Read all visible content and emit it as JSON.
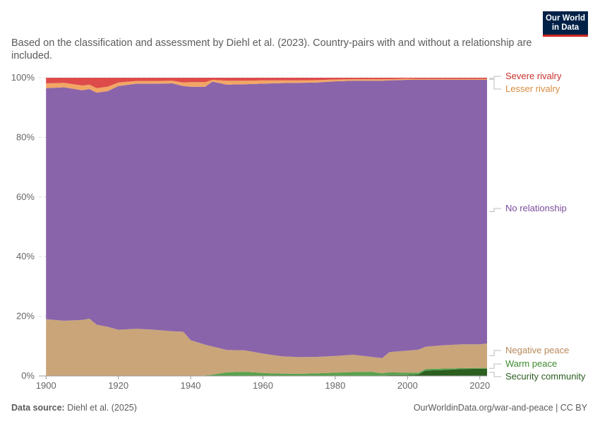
{
  "header": {
    "subtitle": "Based on the classification and assessment by Diehl et al. (2023). Country-pairs with and without a relationship are included.",
    "logo_line1": "Our World",
    "logo_line2": "in Data"
  },
  "footer": {
    "source_label": "Data source:",
    "source_value": "Diehl et al. (2025)",
    "url": "OurWorldinData.org/war-and-peace | CC BY"
  },
  "chart_data": {
    "type": "area",
    "stacked": true,
    "normalized": true,
    "x": [
      1900,
      1905,
      1910,
      1912,
      1914,
      1917,
      1920,
      1925,
      1930,
      1935,
      1938,
      1940,
      1944,
      1946,
      1950,
      1955,
      1960,
      1965,
      1970,
      1975,
      1980,
      1985,
      1990,
      1993,
      1995,
      2000,
      2003,
      2005,
      2010,
      2015,
      2020,
      2022
    ],
    "series": [
      {
        "name": "Security community",
        "color": "#2b5e1f",
        "values": [
          0,
          0,
          0,
          0,
          0,
          0,
          0,
          0,
          0,
          0,
          0,
          0,
          0,
          0,
          0,
          0,
          0,
          0,
          0,
          0,
          0,
          0,
          0,
          0,
          0.3,
          0.3,
          0.5,
          1.8,
          2.0,
          2.3,
          2.4,
          2.4
        ]
      },
      {
        "name": "Warm peace",
        "color": "#5aa14f",
        "values": [
          0,
          0,
          0,
          0,
          0,
          0,
          0,
          0,
          0,
          0,
          0,
          0,
          0.2,
          0.4,
          1.2,
          1.4,
          1.0,
          0.8,
          0.7,
          0.9,
          1.1,
          1.3,
          1.4,
          0.9,
          0.9,
          0.8,
          0.6,
          0.5,
          0.5,
          0.3,
          0.3,
          0.3
        ]
      },
      {
        "name": "Negative peace",
        "color": "#caa57a",
        "values": [
          19.0,
          18.5,
          18.8,
          19.2,
          17.2,
          16.5,
          15.5,
          15.8,
          15.5,
          15.0,
          14.8,
          12.0,
          10.3,
          9.5,
          7.5,
          7.2,
          6.5,
          5.8,
          5.6,
          5.5,
          5.6,
          5.8,
          5.0,
          5.1,
          6.8,
          7.4,
          7.7,
          7.5,
          7.8,
          8.0,
          7.9,
          8.2
        ]
      },
      {
        "name": "No relationship",
        "color": "#8a64aa",
        "values": [
          77.5,
          78.3,
          77.0,
          77.0,
          77.8,
          79.0,
          81.7,
          82.2,
          82.5,
          83.1,
          82.4,
          85.0,
          86.5,
          88.8,
          89.0,
          89.2,
          90.5,
          91.6,
          92.0,
          92.0,
          92.1,
          91.9,
          92.6,
          93.0,
          91.1,
          90.8,
          90.5,
          89.5,
          89.0,
          88.7,
          88.7,
          88.4
        ]
      },
      {
        "name": "Lesser rivalry",
        "color": "#f2a665",
        "values": [
          1.6,
          1.5,
          1.6,
          1.5,
          1.5,
          1.5,
          1.2,
          0.9,
          0.9,
          0.9,
          1.2,
          1.5,
          1.5,
          0.6,
          1.3,
          1.2,
          1.1,
          0.9,
          0.8,
          0.8,
          0.6,
          0.5,
          0.5,
          0.5,
          0.4,
          0.4,
          0.3,
          0.3,
          0.3,
          0.3,
          0.3,
          0.3
        ]
      },
      {
        "name": "Severe rivalry",
        "color": "#de4b4b",
        "values": [
          1.9,
          1.7,
          2.6,
          2.3,
          3.5,
          3.0,
          1.6,
          1.1,
          1.1,
          1.0,
          1.6,
          1.5,
          1.5,
          0.7,
          1.0,
          1.0,
          0.9,
          0.9,
          0.9,
          0.8,
          0.6,
          0.5,
          0.5,
          0.5,
          0.5,
          0.3,
          0.4,
          0.4,
          0.4,
          0.4,
          0.4,
          0.4
        ]
      }
    ],
    "legend": [
      {
        "name": "Severe rivalry",
        "color": "#c9302c"
      },
      {
        "name": "Lesser rivalry",
        "color": "#d98a3e"
      },
      {
        "name": "No relationship",
        "color": "#7a4d9c"
      },
      {
        "name": "Negative peace",
        "color": "#b8895a"
      },
      {
        "name": "Warm peace",
        "color": "#3c8a2e"
      },
      {
        "name": "Security community",
        "color": "#2b5e1f"
      }
    ],
    "legend_placement": "right",
    "xlim": [
      1898,
      2022
    ],
    "ylim": [
      0,
      100
    ],
    "x_ticks": [
      1900,
      1920,
      1940,
      1960,
      1980,
      2000,
      2020
    ],
    "y_ticks": [
      0,
      20,
      40,
      60,
      80,
      100
    ],
    "y_tick_labels": [
      "0%",
      "20%",
      "40%",
      "60%",
      "80%",
      "100%"
    ],
    "grid": true
  }
}
